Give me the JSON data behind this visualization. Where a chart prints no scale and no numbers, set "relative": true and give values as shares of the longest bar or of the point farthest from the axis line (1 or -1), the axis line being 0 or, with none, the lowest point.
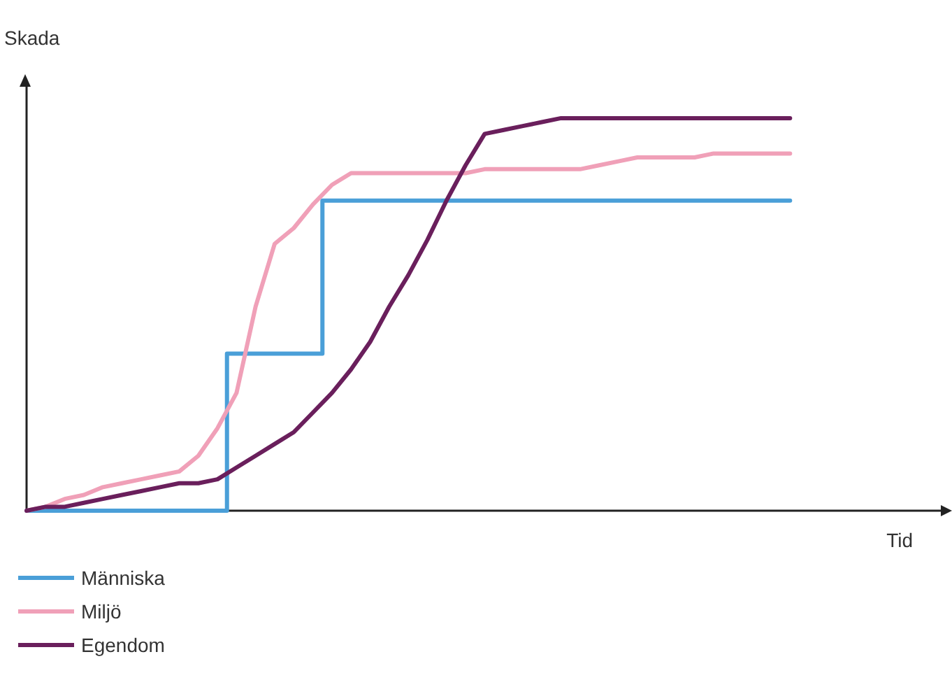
{
  "chart_data": {
    "type": "line",
    "relative": true,
    "ylabel": "Skada",
    "xlabel": "Tid",
    "categories": [
      null,
      null,
      null,
      null,
      null,
      null,
      null,
      null,
      null,
      null,
      null,
      null,
      null,
      null,
      null,
      null,
      null,
      null,
      null,
      null,
      null,
      null,
      null,
      null,
      null,
      null,
      null,
      null,
      null,
      null,
      null,
      null,
      null,
      null,
      null,
      null,
      null,
      null,
      null,
      null,
      null
    ],
    "series": [
      {
        "name": "Människa",
        "type": "step",
        "color": "#4a9fd8",
        "values": [
          0,
          0,
          0,
          0,
          0,
          0,
          0,
          0,
          0,
          0,
          0,
          0.4,
          0.4,
          0.4,
          0.4,
          0.4,
          0.79,
          0.79,
          0.79,
          0.79,
          0.79,
          0.79,
          0.79,
          0.79,
          0.79,
          0.79,
          0.79,
          0.79,
          0.79,
          0.79,
          0.79,
          0.79,
          0.79,
          0.79,
          0.79,
          0.79,
          0.79,
          0.79,
          0.79,
          0.79,
          0.79
        ]
      },
      {
        "name": "Miljö",
        "color": "#f0a0b8",
        "values": [
          0,
          0.01,
          0.03,
          0.04,
          0.06,
          0.07,
          0.08,
          0.09,
          0.1,
          0.14,
          0.21,
          0.3,
          0.52,
          0.68,
          0.72,
          0.78,
          0.83,
          0.86,
          0.86,
          0.86,
          0.86,
          0.86,
          0.86,
          0.86,
          0.87,
          0.87,
          0.87,
          0.87,
          0.87,
          0.87,
          0.88,
          0.89,
          0.9,
          0.9,
          0.9,
          0.9,
          0.91,
          0.91,
          0.91,
          0.91,
          0.91
        ]
      },
      {
        "name": "Egendom",
        "color": "#6a1f5c",
        "values": [
          0,
          0.01,
          0.01,
          0.02,
          0.03,
          0.04,
          0.05,
          0.06,
          0.07,
          0.07,
          0.08,
          0.11,
          0.14,
          0.17,
          0.2,
          0.25,
          0.3,
          0.36,
          0.43,
          0.52,
          0.6,
          0.69,
          0.79,
          0.88,
          0.96,
          0.97,
          0.98,
          0.99,
          1,
          1,
          1,
          1,
          1,
          1,
          1,
          1,
          1,
          1,
          1,
          1,
          1
        ]
      }
    ],
    "legend": "bottom left",
    "grid": false,
    "marker": "none",
    "line_style": "solid"
  }
}
